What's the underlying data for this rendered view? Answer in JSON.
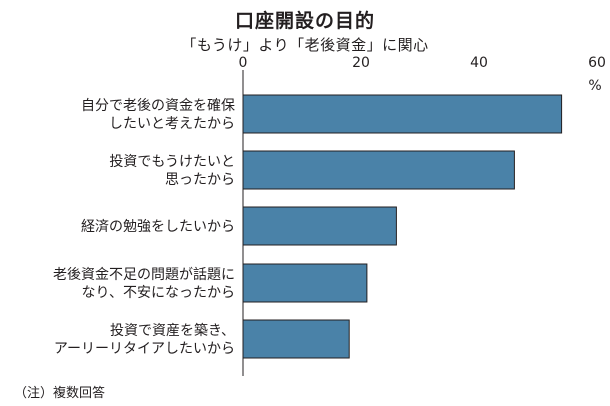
{
  "title": "口座開設の目的",
  "subtitle": "「もうけ」より「老後資金」に関心",
  "note": "（注）複数回答",
  "chart_data": {
    "type": "bar",
    "orientation": "horizontal",
    "title": "口座開設の目的",
    "subtitle": "「もうけ」より「老後資金」に関心",
    "unit": "%",
    "xlim": [
      0,
      60
    ],
    "ticks": [
      0,
      20,
      40,
      60
    ],
    "grid": false,
    "bar_color": "#4a82a8",
    "categories": [
      [
        "自分で老後の資金を確保",
        "したいと考えたから"
      ],
      [
        "投資でもうけたいと",
        "思ったから"
      ],
      [
        "経済の勉強をしたいから"
      ],
      [
        "老後資金不足の問題が話題に",
        "なり、不安になったから"
      ],
      [
        "投資で資産を築き、",
        "アーリーリタイアしたいから"
      ]
    ],
    "values": [
      54,
      46,
      26,
      21,
      18
    ]
  }
}
